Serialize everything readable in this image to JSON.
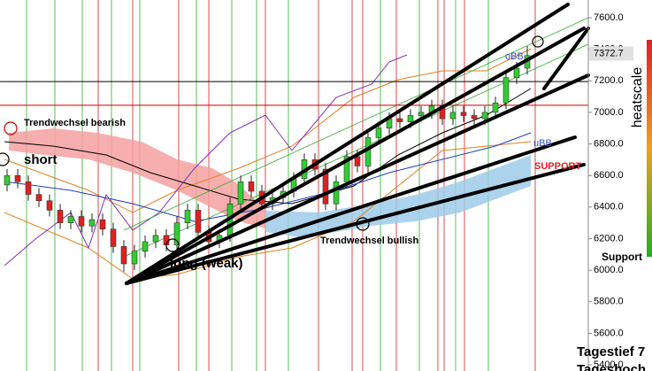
{
  "chart_data": {
    "type": "candlestick",
    "categories": [
      null,
      null,
      null,
      null,
      null,
      null,
      null,
      null,
      null,
      null,
      null,
      null,
      null,
      null,
      null,
      null,
      null,
      null,
      null,
      null,
      null,
      null,
      null,
      null,
      null,
      null,
      null,
      null,
      null,
      null,
      null,
      null,
      null,
      null,
      null,
      null,
      null,
      null,
      null,
      null,
      null,
      null,
      null,
      null,
      null,
      null,
      null,
      null,
      null,
      null
    ],
    "open": [
      6540,
      6600,
      6560,
      6480,
      6440,
      6380,
      6300,
      6340,
      6280,
      6320,
      6260,
      6150,
      6040,
      6120,
      6180,
      6220,
      6160,
      6300,
      6380,
      6240,
      6180,
      6220,
      6420,
      6560,
      6500,
      6420,
      6460,
      6500,
      6580,
      6700,
      6640,
      6420,
      6560,
      6720,
      6660,
      6840,
      6900,
      6960,
      6940,
      6980,
      7000,
      7040,
      6960,
      7000,
      6980,
      6960,
      7000,
      7060,
      7220,
      7280
    ],
    "high": [
      6640,
      6640,
      6600,
      6520,
      6480,
      6420,
      6380,
      6380,
      6360,
      6360,
      6300,
      6190,
      6160,
      6220,
      6260,
      6260,
      6340,
      6420,
      6420,
      6280,
      6260,
      6460,
      6600,
      6600,
      6540,
      6500,
      6540,
      6620,
      6740,
      6740,
      6680,
      6600,
      6760,
      6760,
      6880,
      6940,
      7000,
      7000,
      7020,
      7040,
      7080,
      7080,
      7040,
      7040,
      7020,
      7040,
      7100,
      7260,
      7320,
      7420
    ],
    "low": [
      6500,
      6520,
      6440,
      6400,
      6340,
      6260,
      6260,
      6240,
      6240,
      6220,
      6110,
      5990,
      6000,
      6080,
      6140,
      6120,
      6120,
      6260,
      6200,
      6140,
      6140,
      6180,
      6380,
      6460,
      6380,
      6380,
      6420,
      6460,
      6540,
      6600,
      6380,
      6380,
      6520,
      6620,
      6620,
      6800,
      6860,
      6900,
      6900,
      6940,
      6960,
      6920,
      6920,
      6940,
      6920,
      6920,
      6960,
      7020,
      7180,
      7240
    ],
    "close": [
      6600,
      6560,
      6480,
      6440,
      6380,
      6300,
      6340,
      6280,
      6320,
      6260,
      6150,
      6040,
      6120,
      6180,
      6220,
      6160,
      6300,
      6380,
      6240,
      6180,
      6220,
      6420,
      6560,
      6500,
      6420,
      6460,
      6500,
      6580,
      6700,
      6640,
      6420,
      6560,
      6720,
      6660,
      6840,
      6900,
      6960,
      6940,
      6980,
      7000,
      7040,
      6960,
      7000,
      6980,
      6960,
      7000,
      7060,
      7220,
      7280,
      7360
    ],
    "up_color": "#33cc33",
    "down_color": "#e02020",
    "ylim": [
      5361,
      7712
    ],
    "yticks": [
      {
        "value": 5400,
        "label": "5400.0"
      },
      {
        "value": 5600,
        "label": "5600.0"
      },
      {
        "value": 5800,
        "label": "5800.0"
      },
      {
        "value": 6000,
        "label": "6000.0"
      },
      {
        "value": 6200,
        "label": "6200.0"
      },
      {
        "value": 6400,
        "label": "6400.0"
      },
      {
        "value": 6600,
        "label": "6600.0"
      },
      {
        "value": 6800,
        "label": "6800.0"
      },
      {
        "value": 7000,
        "label": "7000.0"
      },
      {
        "value": 7200,
        "label": "7200.0"
      },
      {
        "value": 7400,
        "label": "7400.0"
      },
      {
        "value": 7600,
        "label": "7600.0"
      }
    ],
    "last_price": {
      "value": 7372.7,
      "label": "7372.7"
    },
    "hlines": [
      {
        "value": 7195,
        "color": "#000000"
      },
      {
        "value": 7045,
        "color": "#cc0000"
      }
    ],
    "annotations": {
      "trend_bearish": "Trendwechsel bearish",
      "short": "short",
      "long": "long (weak)",
      "trend_bullish": "Trendwechsel bullish",
      "support_zone": "SUPPORT",
      "obb": "oBB",
      "ubb": "uBB"
    },
    "heatscale": "heatscale",
    "support": "Support",
    "day_low": "Tagestief 7",
    "day_high": "Tageshoch"
  }
}
